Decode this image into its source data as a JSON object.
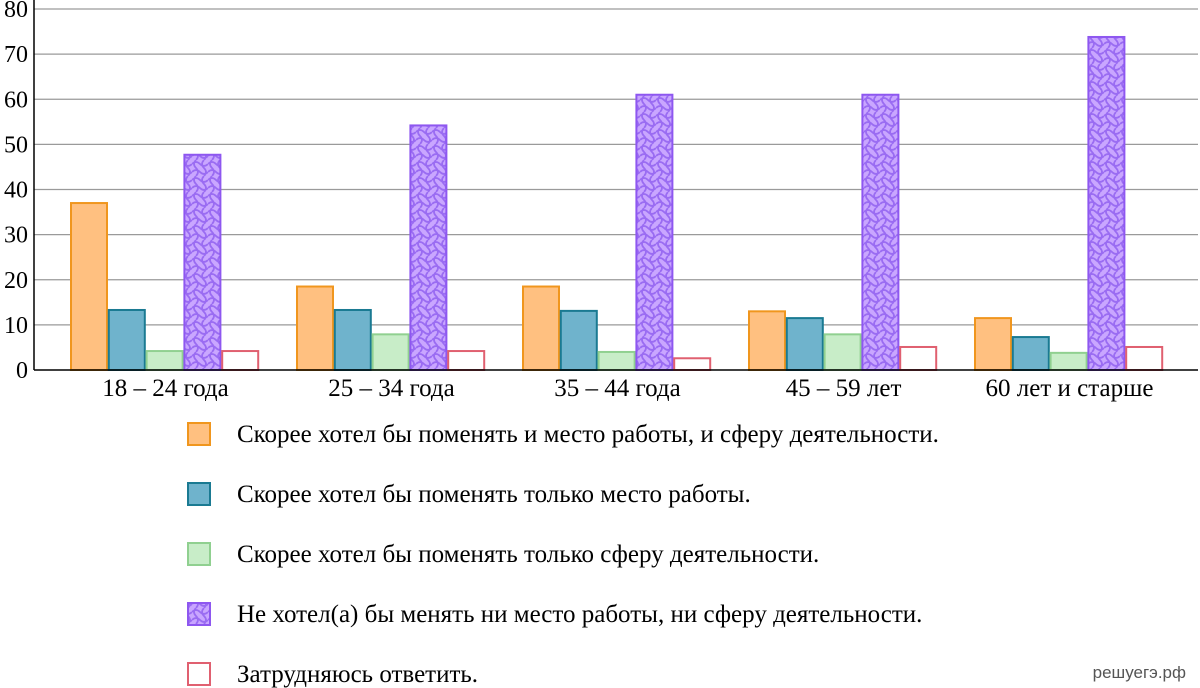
{
  "chart_data": {
    "type": "bar",
    "categories": [
      "18 – 24 года",
      "25 – 34 года",
      "35 – 44 года",
      "45 – 59 лет",
      "60 лет и старше"
    ],
    "series": [
      {
        "name": "Скорее хотел бы поменять и место работы, и сферу деятельности.",
        "values": [
          37,
          18.5,
          18.5,
          13,
          11.5
        ],
        "color": "#FFC080",
        "stroke": "#F0961E",
        "pattern": "none"
      },
      {
        "name": "Скорее хотел бы поменять только место работы.",
        "values": [
          13.3,
          13.3,
          13.1,
          11.5,
          7.3
        ],
        "color": "#6FB3CC",
        "stroke": "#1A7A92",
        "pattern": "none"
      },
      {
        "name": "Скорее хотел бы поменять только сферу деятельности.",
        "values": [
          4.2,
          7.9,
          4,
          7.9,
          3.8
        ],
        "color": "#C8EDC8",
        "stroke": "#90D090",
        "pattern": "none"
      },
      {
        "name": "Не хотел(а) бы менять ни место работы, ни сферу деятельности.",
        "values": [
          47.7,
          54.2,
          61,
          61,
          73.8
        ],
        "color": "#C9A6FF",
        "stroke": "#8E57F0",
        "pattern": "wavy"
      },
      {
        "name": "Затрудняюсь ответить.",
        "values": [
          4.2,
          4.2,
          2.6,
          5.1,
          5.1
        ],
        "color": "#FFFFFF",
        "stroke": "#E06070",
        "pattern": "none"
      }
    ],
    "ylim": [
      0,
      80
    ],
    "yticks": [
      0,
      10,
      20,
      30,
      40,
      50,
      60,
      70,
      80
    ],
    "grid": true,
    "legend_position": "bottom",
    "title": "",
    "xlabel": "",
    "ylabel": ""
  },
  "watermark": "решуегэ.рф"
}
